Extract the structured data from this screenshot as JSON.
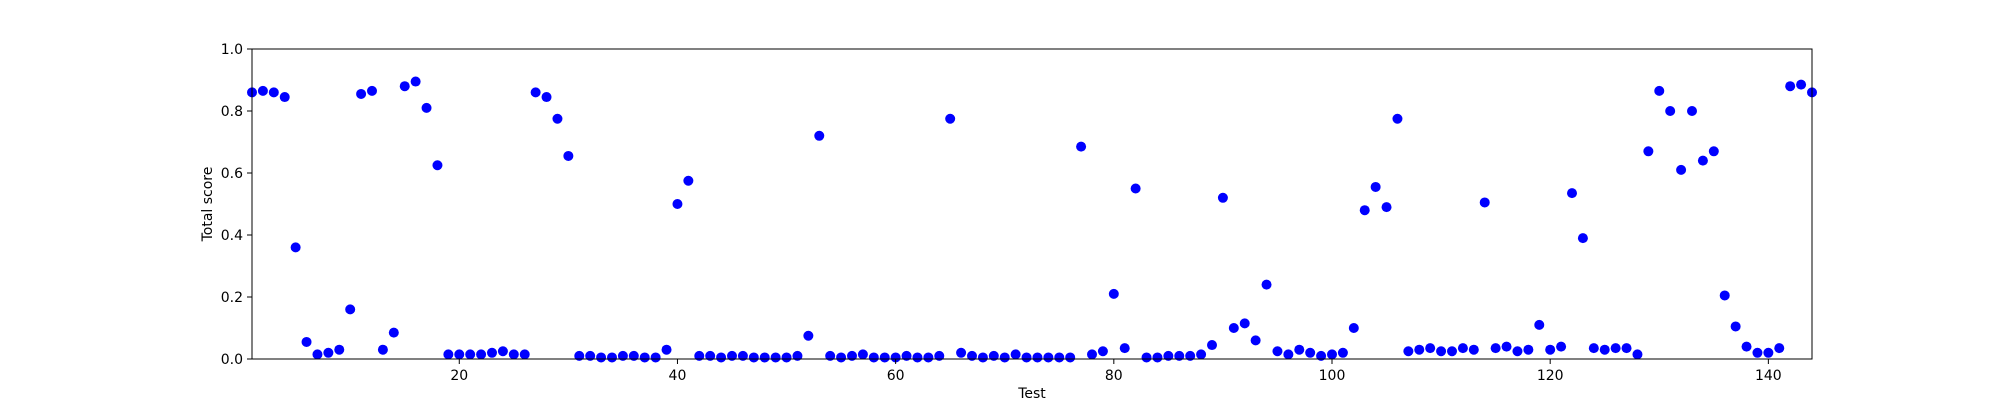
{
  "chart_data": {
    "type": "scatter",
    "title": "",
    "xlabel": "Test",
    "ylabel": "Total score",
    "xlim": [
      1,
      144
    ],
    "ylim": [
      0.0,
      1.0
    ],
    "xticks": [
      20,
      40,
      60,
      80,
      100,
      120,
      140
    ],
    "yticks": [
      0.0,
      0.2,
      0.4,
      0.6,
      0.8,
      1.0
    ],
    "xtick_labels": [
      "20",
      "40",
      "60",
      "80",
      "100",
      "120",
      "140"
    ],
    "ytick_labels": [
      "0.0",
      "0.2",
      "0.4",
      "0.6",
      "0.8",
      "1.0"
    ],
    "grid": false,
    "marker_color": "#0000ff",
    "series": [
      {
        "x": [
          1,
          2,
          3,
          4,
          5,
          6,
          7,
          8,
          9,
          10,
          11,
          12,
          13,
          14,
          15,
          16,
          17,
          18,
          19,
          20,
          21,
          22,
          23,
          24,
          25,
          26,
          27,
          28,
          29,
          30,
          31,
          32,
          33,
          34,
          35,
          36,
          37,
          38,
          39,
          40,
          41,
          42,
          43,
          44,
          45,
          46,
          47,
          48,
          49,
          50,
          51,
          52,
          53,
          54,
          55,
          56,
          57,
          58,
          59,
          60,
          61,
          62,
          63,
          64,
          65,
          66,
          67,
          68,
          69,
          70,
          71,
          72,
          73,
          74,
          75,
          76,
          77,
          78,
          79,
          80,
          81,
          82,
          83,
          84,
          85,
          86,
          87,
          88,
          89,
          90,
          91,
          92,
          93,
          94,
          95,
          96,
          97,
          98,
          99,
          100,
          101,
          102,
          103,
          104,
          105,
          106,
          107,
          108,
          109,
          110,
          111,
          112,
          113,
          114,
          115,
          116,
          117,
          118,
          119,
          120,
          121,
          122,
          123,
          124,
          125,
          126,
          127,
          128,
          129,
          130,
          131,
          132,
          133,
          134,
          135,
          136,
          137,
          138,
          139,
          140,
          141,
          142,
          143,
          144
        ],
        "y": [
          0.86,
          0.865,
          0.86,
          0.845,
          0.36,
          0.055,
          0.015,
          0.02,
          0.03,
          0.16,
          0.855,
          0.865,
          0.03,
          0.085,
          0.88,
          0.895,
          0.81,
          0.625,
          0.015,
          0.015,
          0.015,
          0.015,
          0.02,
          0.025,
          0.015,
          0.015,
          0.86,
          0.845,
          0.775,
          0.655,
          0.01,
          0.01,
          0.005,
          0.005,
          0.01,
          0.01,
          0.005,
          0.005,
          0.03,
          0.5,
          0.575,
          0.01,
          0.01,
          0.005,
          0.01,
          0.01,
          0.005,
          0.005,
          0.005,
          0.005,
          0.01,
          0.075,
          0.72,
          0.01,
          0.005,
          0.01,
          0.015,
          0.005,
          0.005,
          0.005,
          0.01,
          0.005,
          0.005,
          0.01,
          0.775,
          0.02,
          0.01,
          0.005,
          0.01,
          0.005,
          0.015,
          0.005,
          0.005,
          0.005,
          0.005,
          0.005,
          0.685,
          0.015,
          0.025,
          0.21,
          0.035,
          0.55,
          0.005,
          0.005,
          0.01,
          0.01,
          0.01,
          0.015,
          0.045,
          0.52,
          0.1,
          0.115,
          0.06,
          0.24,
          0.025,
          0.015,
          0.03,
          0.02,
          0.01,
          0.015,
          0.02,
          0.1,
          0.48,
          0.555,
          0.49,
          0.775,
          0.025,
          0.03,
          0.035,
          0.025,
          0.025,
          0.035,
          0.03,
          0.505,
          0.035,
          0.04,
          0.025,
          0.03,
          0.11,
          0.03,
          0.04,
          0.535,
          0.39,
          0.035,
          0.03,
          0.035,
          0.035,
          0.015,
          0.67,
          0.865,
          0.8,
          0.61,
          0.8,
          0.64,
          0.67,
          0.205,
          0.105,
          0.04,
          0.02,
          0.02,
          0.035,
          0.88,
          0.885,
          0.86
        ]
      }
    ]
  }
}
